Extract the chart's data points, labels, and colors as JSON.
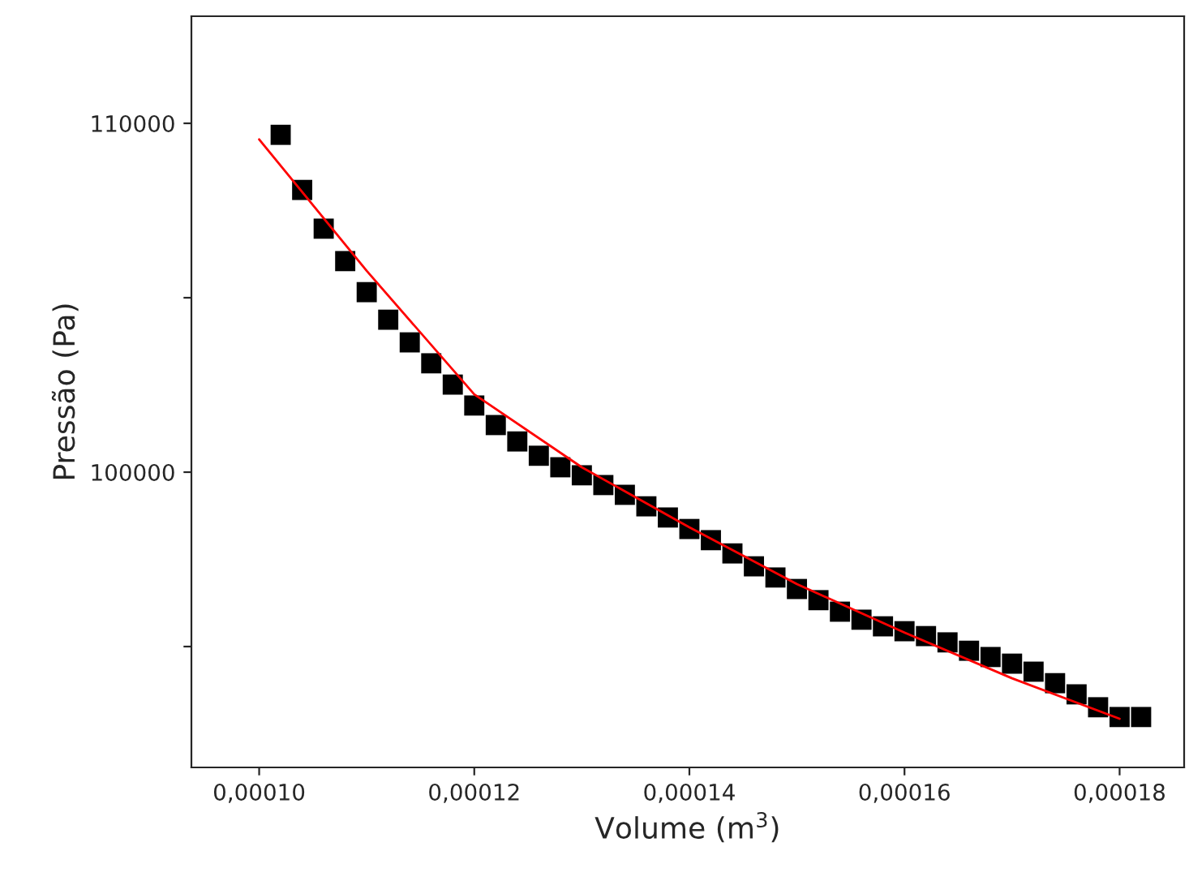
{
  "chart_data": {
    "type": "scatter",
    "xlabel": "Volume (m$^{3}$)",
    "ylabel": "Pressão (Pa)",
    "xlim": [
      9.37e-05,
      0.000186
    ],
    "ylim": [
      91535,
      113070
    ],
    "xticks": [
      {
        "value": 0.0001,
        "label": "0,00010"
      },
      {
        "value": 0.00012,
        "label": "0,00012"
      },
      {
        "value": 0.00014,
        "label": "0,00014"
      },
      {
        "value": 0.00016,
        "label": "0,00016"
      },
      {
        "value": 0.00018,
        "label": "0,00018"
      }
    ],
    "yticks": [
      {
        "value": 95000,
        "label": null
      },
      100000,
      {
        "value": 105000,
        "label": null
      },
      110000
    ],
    "grid": false,
    "legend": false,
    "series": [
      {
        "marker": "square",
        "color": "#000000",
        "x": [
          0.000102,
          0.000104,
          0.000106,
          0.000108,
          0.00011,
          0.000112,
          0.000114,
          0.000116,
          0.000118,
          0.00012,
          0.000122,
          0.000124,
          0.000126,
          0.000128,
          0.00013,
          0.000132,
          0.000134,
          0.000136,
          0.000138,
          0.00014,
          0.000142,
          0.000144,
          0.000146,
          0.000148,
          0.00015,
          0.000152,
          0.000154,
          0.000156,
          0.000158,
          0.00016,
          0.000162,
          0.000164,
          0.000166,
          0.000168,
          0.00017,
          0.000172,
          0.000174,
          0.000176,
          0.000178,
          0.00018,
          0.000182
        ],
        "values": [
          109670,
          108090,
          106980,
          106050,
          105160,
          104370,
          103720,
          103120,
          102510,
          101910,
          101350,
          100880,
          100470,
          100140,
          99910,
          99630,
          99350,
          99020,
          98700,
          98370,
          98050,
          97670,
          97300,
          96980,
          96650,
          96330,
          96000,
          95770,
          95580,
          95440,
          95300,
          95120,
          94880,
          94700,
          94510,
          94280,
          93950,
          93630,
          93260,
          92980,
          92980
        ]
      },
      {
        "type": "line",
        "marker": "none",
        "line_style": "solid",
        "color": "#ff0000",
        "x": [
          0.0001,
          0.00011,
          0.00012,
          0.00013,
          0.00014,
          0.00015,
          0.00016,
          0.00017,
          0.00018
        ],
        "values": [
          109540,
          105770,
          102230,
          100140,
          98420,
          96790,
          95400,
          94090,
          92930
        ]
      }
    ]
  }
}
